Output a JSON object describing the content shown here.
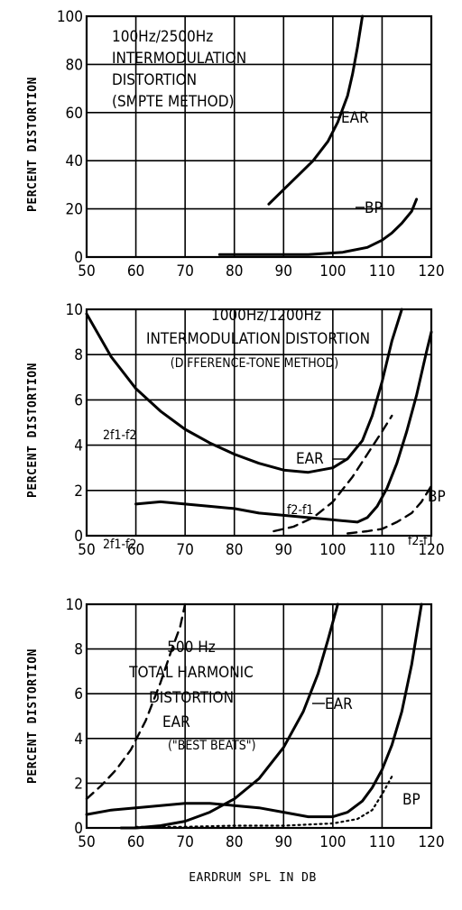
{
  "xlabel": "EARDRUM SPL IN DB",
  "chart_data": [
    {
      "type": "line",
      "title_lines": [
        "100Hz/2500Hz",
        "INTERMODULATION",
        "DISTORTION",
        "(SMPTE METHOD)"
      ],
      "ylabel": "PERCENT DISTORTION",
      "xlim": [
        50,
        120
      ],
      "ylim": [
        0,
        100
      ],
      "x_ticks": [
        50,
        60,
        70,
        80,
        90,
        100,
        110,
        120
      ],
      "y_ticks": [
        0,
        20,
        40,
        60,
        80,
        100
      ],
      "series": [
        {
          "name": "EAR",
          "style": "solid",
          "x": [
            87,
            90,
            93,
            96,
            99,
            101,
            103,
            104,
            105,
            106
          ],
          "y": [
            22,
            28,
            34,
            40,
            48,
            56,
            67,
            76,
            87,
            100
          ]
        },
        {
          "name": "BP",
          "style": "solid",
          "x": [
            77,
            85,
            95,
            102,
            107,
            110,
            112,
            114,
            116,
            117
          ],
          "y": [
            1,
            1,
            1,
            2,
            4,
            7,
            10,
            14,
            19,
            24
          ]
        }
      ]
    },
    {
      "type": "line",
      "title_lines": [
        "1000Hz/1200Hz",
        "INTERMODULATION DISTORTION",
        "(DIFFERENCE-TONE METHOD)"
      ],
      "ylabel": "PERCENT DISTORTION",
      "xlim": [
        50,
        120
      ],
      "ylim": [
        0,
        10
      ],
      "x_ticks": [
        50,
        60,
        70,
        80,
        90,
        100,
        110,
        120
      ],
      "y_ticks": [
        0,
        2,
        4,
        6,
        8,
        10
      ],
      "labels": {
        "ear_2f1f2": "2f1-f2",
        "ear_f2f1": "f2-f1",
        "ear": "EAR",
        "bp": "BP",
        "bp_2f1f2": "2f1-f2",
        "bp_f2f1": "f2-f1"
      },
      "series": [
        {
          "name": "EAR 2f1-f2",
          "style": "solid",
          "x": [
            50,
            55,
            60,
            65,
            70,
            75,
            80,
            85,
            90,
            95,
            100,
            103,
            106,
            108,
            110,
            112,
            114
          ],
          "y": [
            9.8,
            7.9,
            6.5,
            5.5,
            4.7,
            4.1,
            3.6,
            3.2,
            2.9,
            2.8,
            3.0,
            3.4,
            4.2,
            5.3,
            6.8,
            8.6,
            10.0
          ]
        },
        {
          "name": "EAR f2-f1",
          "style": "dashed",
          "x": [
            88,
            92,
            96,
            100,
            104,
            107,
            110,
            112
          ],
          "y": [
            0.2,
            0.4,
            0.8,
            1.5,
            2.6,
            3.6,
            4.6,
            5.3
          ]
        },
        {
          "name": "BP 2f1-f2",
          "style": "solid",
          "x": [
            60,
            65,
            70,
            75,
            80,
            85,
            90,
            95,
            100,
            105,
            107,
            109,
            111,
            113,
            115,
            117,
            119,
            120
          ],
          "y": [
            1.4,
            1.5,
            1.4,
            1.3,
            1.2,
            1.0,
            0.9,
            0.8,
            0.7,
            0.6,
            0.8,
            1.3,
            2.1,
            3.2,
            4.6,
            6.2,
            8.1,
            9.0
          ]
        },
        {
          "name": "BP f2-f1",
          "style": "dashed",
          "x": [
            103,
            107,
            110,
            113,
            116,
            118,
            120
          ],
          "y": [
            0.1,
            0.2,
            0.3,
            0.6,
            1.0,
            1.5,
            2.2
          ]
        }
      ]
    },
    {
      "type": "line",
      "title_lines": [
        "500 Hz",
        "TOTAL HARMONIC",
        "DISTORTION"
      ],
      "ylabel": "PERCENT DISTORTION",
      "xlim": [
        50,
        120
      ],
      "ylim": [
        0,
        10
      ],
      "x_ticks": [
        50,
        60,
        70,
        80,
        90,
        100,
        110,
        120
      ],
      "y_ticks": [
        0,
        2,
        4,
        6,
        8,
        10
      ],
      "labels": {
        "ear_best_beats": "EAR",
        "best_beats": "(\"BEST BEATS\")",
        "ear": "EAR",
        "bp": "BP"
      },
      "series": [
        {
          "name": "EAR (\"BEST BEATS\")",
          "style": "dashed",
          "x": [
            50,
            53,
            56,
            59,
            62,
            65,
            67,
            69,
            70
          ],
          "y": [
            1.3,
            1.9,
            2.6,
            3.5,
            4.8,
            6.5,
            7.8,
            9.0,
            10.0
          ]
        },
        {
          "name": "EAR",
          "style": "solid",
          "x": [
            57,
            60,
            65,
            70,
            75,
            80,
            85,
            90,
            94,
            97,
            99,
            101
          ],
          "y": [
            0.0,
            0.0,
            0.1,
            0.3,
            0.7,
            1.3,
            2.2,
            3.6,
            5.2,
            6.9,
            8.4,
            10.0
          ]
        },
        {
          "name": "BP",
          "style": "solid",
          "x": [
            50,
            55,
            60,
            65,
            70,
            75,
            80,
            85,
            90,
            95,
            100,
            103,
            106,
            108,
            110,
            112,
            114,
            116,
            118
          ],
          "y": [
            0.6,
            0.8,
            0.9,
            1.0,
            1.1,
            1.1,
            1.0,
            0.9,
            0.7,
            0.5,
            0.5,
            0.7,
            1.2,
            1.8,
            2.6,
            3.7,
            5.2,
            7.3,
            10.0
          ]
        },
        {
          "name": "BP dotted",
          "style": "dotted",
          "x": [
            60,
            70,
            80,
            90,
            100,
            105,
            108,
            110,
            112
          ],
          "y": [
            0.05,
            0.05,
            0.1,
            0.1,
            0.2,
            0.4,
            0.8,
            1.5,
            2.3
          ]
        }
      ]
    }
  ]
}
